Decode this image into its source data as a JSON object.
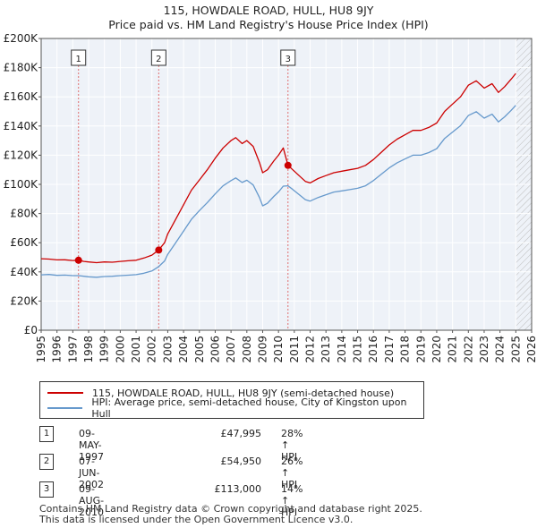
{
  "title": "115, HOWDALE ROAD, HULL, HU8 9JY",
  "subtitle": "Price paid vs. HM Land Registry's House Price Index (HPI)",
  "chart_data": {
    "type": "line",
    "xlim": [
      1995,
      2026
    ],
    "ylim": [
      0,
      200000
    ],
    "y_ticks": [
      0,
      20000,
      40000,
      60000,
      80000,
      100000,
      120000,
      140000,
      160000,
      180000,
      200000
    ],
    "y_tick_labels": [
      "£0",
      "£20K",
      "£40K",
      "£60K",
      "£80K",
      "£100K",
      "£120K",
      "£140K",
      "£160K",
      "£180K",
      "£200K"
    ],
    "x_ticks": [
      "1995",
      "1996",
      "1997",
      "1998",
      "1999",
      "2000",
      "2001",
      "2002",
      "2003",
      "2004",
      "2005",
      "2006",
      "2007",
      "2008",
      "2009",
      "2010",
      "2011",
      "2012",
      "2013",
      "2014",
      "2015",
      "2016",
      "2017",
      "2018",
      "2019",
      "2020",
      "2021",
      "2022",
      "2023",
      "2024",
      "2025",
      "2026"
    ],
    "grid": true,
    "future_hatch_from": 2025.0,
    "series": [
      {
        "name": "115, HOWDALE ROAD, HULL, HU8 9JY (semi-detached house)",
        "color": "#cc0000",
        "points": [
          [
            1995.0,
            49000
          ],
          [
            1995.5,
            48800
          ],
          [
            1996.0,
            48200
          ],
          [
            1996.5,
            48300
          ],
          [
            1997.0,
            47800
          ],
          [
            1997.36,
            47995
          ],
          [
            1997.7,
            47200
          ],
          [
            1998.0,
            46800
          ],
          [
            1998.5,
            46300
          ],
          [
            1999.0,
            46800
          ],
          [
            1999.5,
            46600
          ],
          [
            2000.0,
            47200
          ],
          [
            2000.5,
            47600
          ],
          [
            2001.0,
            48000
          ],
          [
            2001.5,
            49500
          ],
          [
            2002.0,
            51500
          ],
          [
            2002.43,
            54950
          ],
          [
            2002.8,
            60000
          ],
          [
            2003.0,
            66000
          ],
          [
            2003.5,
            76000
          ],
          [
            2004.0,
            86000
          ],
          [
            2004.5,
            96000
          ],
          [
            2005.0,
            103000
          ],
          [
            2005.5,
            110000
          ],
          [
            2006.0,
            118000
          ],
          [
            2006.5,
            125000
          ],
          [
            2007.0,
            130000
          ],
          [
            2007.3,
            132000
          ],
          [
            2007.7,
            128000
          ],
          [
            2008.0,
            130000
          ],
          [
            2008.4,
            126000
          ],
          [
            2008.8,
            115000
          ],
          [
            2009.0,
            108000
          ],
          [
            2009.3,
            110000
          ],
          [
            2009.7,
            116000
          ],
          [
            2010.0,
            120000
          ],
          [
            2010.3,
            125000
          ],
          [
            2010.6,
            113000
          ],
          [
            2010.9,
            110000
          ],
          [
            2011.3,
            106000
          ],
          [
            2011.7,
            102000
          ],
          [
            2012.0,
            101000
          ],
          [
            2012.5,
            104000
          ],
          [
            2013.0,
            106000
          ],
          [
            2013.5,
            108000
          ],
          [
            2014.0,
            109000
          ],
          [
            2014.5,
            110000
          ],
          [
            2015.0,
            111000
          ],
          [
            2015.5,
            113000
          ],
          [
            2016.0,
            117000
          ],
          [
            2016.5,
            122000
          ],
          [
            2017.0,
            127000
          ],
          [
            2017.5,
            131000
          ],
          [
            2018.0,
            134000
          ],
          [
            2018.5,
            137000
          ],
          [
            2019.0,
            137000
          ],
          [
            2019.5,
            139000
          ],
          [
            2020.0,
            142000
          ],
          [
            2020.5,
            150000
          ],
          [
            2021.0,
            155000
          ],
          [
            2021.5,
            160000
          ],
          [
            2022.0,
            168000
          ],
          [
            2022.5,
            171000
          ],
          [
            2023.0,
            166000
          ],
          [
            2023.5,
            169000
          ],
          [
            2023.9,
            163000
          ],
          [
            2024.3,
            167000
          ],
          [
            2024.7,
            172000
          ],
          [
            2025.0,
            176000
          ]
        ]
      },
      {
        "name": "HPI: Average price, semi-detached house, City of Kingston upon Hull",
        "color": "#6699cc",
        "points": [
          [
            1995.0,
            38000
          ],
          [
            1995.5,
            38200
          ],
          [
            1996.0,
            37600
          ],
          [
            1996.5,
            37800
          ],
          [
            1997.0,
            37400
          ],
          [
            1997.36,
            37400
          ],
          [
            1997.7,
            37000
          ],
          [
            1998.0,
            36600
          ],
          [
            1998.5,
            36300
          ],
          [
            1999.0,
            36800
          ],
          [
            1999.5,
            37000
          ],
          [
            2000.0,
            37400
          ],
          [
            2000.5,
            37700
          ],
          [
            2001.0,
            38100
          ],
          [
            2001.5,
            39100
          ],
          [
            2002.0,
            40600
          ],
          [
            2002.43,
            43600
          ],
          [
            2002.8,
            47500
          ],
          [
            2003.0,
            52000
          ],
          [
            2003.5,
            60000
          ],
          [
            2004.0,
            68000
          ],
          [
            2004.5,
            76000
          ],
          [
            2005.0,
            82000
          ],
          [
            2005.5,
            87500
          ],
          [
            2006.0,
            93500
          ],
          [
            2006.5,
            99000
          ],
          [
            2007.0,
            102600
          ],
          [
            2007.3,
            104400
          ],
          [
            2007.7,
            101300
          ],
          [
            2008.0,
            102800
          ],
          [
            2008.4,
            99600
          ],
          [
            2008.8,
            91000
          ],
          [
            2009.0,
            85300
          ],
          [
            2009.3,
            87000
          ],
          [
            2009.7,
            91700
          ],
          [
            2010.0,
            94800
          ],
          [
            2010.3,
            98800
          ],
          [
            2010.6,
            99000
          ],
          [
            2010.9,
            96500
          ],
          [
            2011.3,
            93000
          ],
          [
            2011.7,
            89500
          ],
          [
            2012.0,
            88500
          ],
          [
            2012.5,
            91000
          ],
          [
            2013.0,
            92900
          ],
          [
            2013.5,
            94700
          ],
          [
            2014.0,
            95500
          ],
          [
            2014.5,
            96400
          ],
          [
            2015.0,
            97300
          ],
          [
            2015.5,
            99000
          ],
          [
            2016.0,
            102600
          ],
          [
            2016.5,
            107000
          ],
          [
            2017.0,
            111300
          ],
          [
            2017.5,
            114800
          ],
          [
            2018.0,
            117400
          ],
          [
            2018.5,
            120000
          ],
          [
            2019.0,
            120000
          ],
          [
            2019.5,
            121800
          ],
          [
            2020.0,
            124400
          ],
          [
            2020.5,
            131500
          ],
          [
            2021.0,
            135800
          ],
          [
            2021.5,
            140200
          ],
          [
            2022.0,
            147200
          ],
          [
            2022.5,
            149800
          ],
          [
            2023.0,
            145400
          ],
          [
            2023.5,
            148100
          ],
          [
            2023.9,
            142800
          ],
          [
            2024.3,
            146300
          ],
          [
            2024.7,
            150700
          ],
          [
            2025.0,
            154200
          ]
        ]
      }
    ],
    "sales": [
      {
        "label": "1",
        "date": "09-MAY-1997",
        "x": 1997.36,
        "price": 47995,
        "price_label": "£47,995",
        "hpi": "28% ↑ HPI"
      },
      {
        "label": "2",
        "date": "07-JUN-2002",
        "x": 2002.43,
        "price": 54950,
        "price_label": "£54,950",
        "hpi": "26% ↑ HPI"
      },
      {
        "label": "3",
        "date": "09-AUG-2010",
        "x": 2010.6,
        "price": 113000,
        "price_label": "£113,000",
        "hpi": "14% ↑ HPI"
      }
    ]
  },
  "legend": {
    "series1": "115, HOWDALE ROAD, HULL, HU8 9JY (semi-detached house)",
    "series2": "HPI: Average price, semi-detached house, City of Kingston upon Hull"
  },
  "footer": {
    "line1": "Contains HM Land Registry data © Crown copyright and database right 2025.",
    "line2": "This data is licensed under the Open Government Licence v3.0."
  }
}
